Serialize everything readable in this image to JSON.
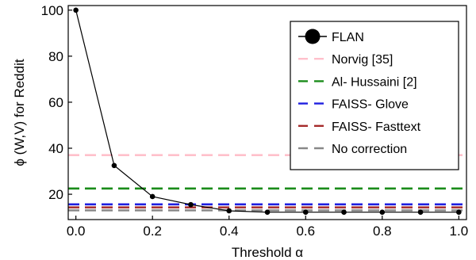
{
  "chart_data": {
    "type": "line",
    "xlabel": "Threshold α",
    "ylabel": "ϕ (W,V) for Reddit",
    "xlim": [
      -0.02,
      1.02
    ],
    "ylim": [
      9,
      102
    ],
    "xticks": [
      0.0,
      0.2,
      0.4,
      0.6,
      0.8,
      1.0
    ],
    "xtick_labels": [
      "0.0",
      "0.2",
      "0.4",
      "0.6",
      "0.8",
      "1.0"
    ],
    "yticks": [
      20,
      40,
      60,
      80,
      100
    ],
    "ytick_labels": [
      "20",
      "40",
      "60",
      "80",
      "100"
    ],
    "grid": false,
    "legend_position": "right",
    "series": [
      {
        "name": "FLAN",
        "kind": "line-marker",
        "color": "#000000",
        "x": [
          0.0,
          0.1,
          0.2,
          0.3,
          0.4,
          0.5,
          0.6,
          0.7,
          0.8,
          0.9,
          1.0
        ],
        "values": [
          100,
          32.5,
          19,
          15.5,
          12.8,
          12.2,
          12.2,
          12.2,
          12.2,
          12.2,
          12.2
        ]
      },
      {
        "name": "Norvig [35]",
        "kind": "hline",
        "color": "#ffc0cb",
        "value": 37
      },
      {
        "name": "Al- Hussaini [2]",
        "kind": "hline",
        "color": "#1a8c1a",
        "value": 22.5
      },
      {
        "name": "FAISS- Glove",
        "kind": "hline",
        "color": "#1f1fe0",
        "value": 15.6
      },
      {
        "name": "FAISS- Fasttext",
        "kind": "hline",
        "color": "#a52a2a",
        "value": 14.3
      },
      {
        "name": "No correction",
        "kind": "hline",
        "color": "#888888",
        "value": 13
      }
    ]
  }
}
